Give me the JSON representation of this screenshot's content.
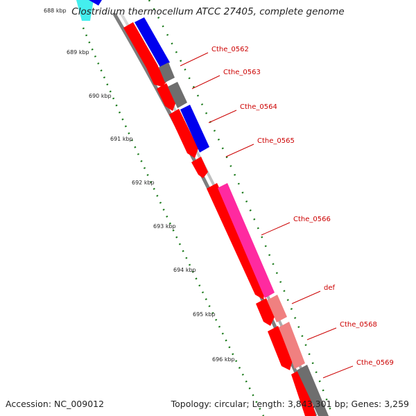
{
  "header": {
    "title": "Clostridium thermocellum ATCC 27405, complete genome"
  },
  "footer": {
    "accession": "Accession: NC_009012",
    "summary": "Topology: circular; Length: 3,843,301 bp; Genes: 3,259"
  },
  "axis": {
    "unit": "kbp",
    "ticks": [
      "688 kbp",
      "689 kbp",
      "690 kbp",
      "691 kbp",
      "692 kbp",
      "693 kbp",
      "694 kbp",
      "695 kbp",
      "696 kbp"
    ]
  },
  "gene_labels": [
    "Cthe_0562",
    "Cthe_0563",
    "Cthe_0564",
    "Cthe_0565",
    "Cthe_0566",
    "def",
    "Cthe_0568",
    "Cthe_0569"
  ],
  "colors": {
    "backbone": "#8c8c8c",
    "cds_red": "#ff0000",
    "cog_blue": "#0000ee",
    "cog_grey": "#6e6e6e",
    "cog_magenta": "#ff2aa0",
    "cog_salmon": "#f08080",
    "cog_cyan": "#44eeee",
    "tick_green": "#1a7a1a",
    "label_red": "#cc0000"
  }
}
